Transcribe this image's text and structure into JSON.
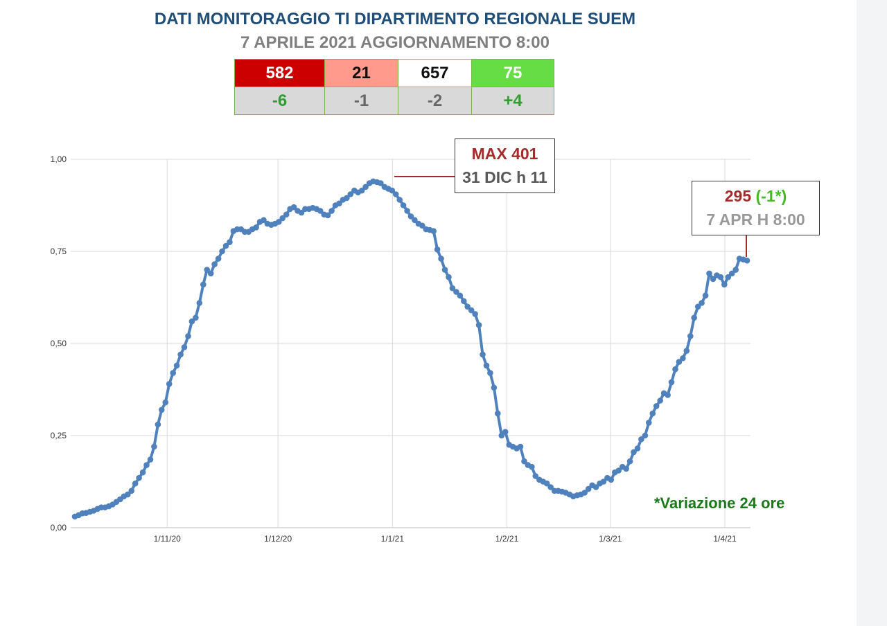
{
  "header": {
    "title": "DATI MONITORAGGIO TI DIPARTIMENTO REGIONALE SUEM",
    "subtitle": "7 APRILE 2021 AGGIORNAMENTO 8:00"
  },
  "summary_table": {
    "values": [
      {
        "value": "582",
        "bg": "#cc0000",
        "color": "#ffffff"
      },
      {
        "value": "21",
        "bg": "#ff9a8c",
        "color": "#111111"
      },
      {
        "value": "657",
        "bg": "#ffffff",
        "color": "#111111"
      },
      {
        "value": "75",
        "bg": "#66dd44",
        "color": "#ffffff"
      }
    ],
    "deltas": [
      {
        "value": "-6",
        "color": "#2e9e2e"
      },
      {
        "value": "-1",
        "color": "#666666"
      },
      {
        "value": "-2",
        "color": "#666666"
      },
      {
        "value": "+4",
        "color": "#2e9e2e"
      }
    ],
    "delta_bg": "#d9d9d9",
    "border_color": "#7ab648"
  },
  "annotations": {
    "max_label": "MAX 401",
    "max_date": "31 DIC h 11",
    "current_value": "295",
    "current_change": "(-1*)",
    "current_date": "7 APR H 8:00",
    "footnote": "*Variazione 24 ore"
  },
  "colors": {
    "line": "#4f81bd",
    "title": "#1f4e79",
    "subtitle": "#7f7f7f",
    "max_red": "#a52a2a",
    "green": "#2e9e2e",
    "grid": "#d9d9d9"
  },
  "chart_data": {
    "type": "line",
    "title": "",
    "xlabel": "",
    "ylabel": "",
    "ylim": [
      0,
      1
    ],
    "yticks": [
      "0,00",
      "0,25",
      "0,50",
      "0,75",
      "1,00"
    ],
    "xticks": [
      "1/11/20",
      "1/12/20",
      "1/1/21",
      "1/2/21",
      "1/3/21",
      "1/4/21"
    ],
    "grid": true,
    "x_start": "2020-10-07",
    "x_end": "2021-04-07",
    "series": [
      {
        "values": [
          0.03,
          0.034,
          0.039,
          0.04,
          0.043,
          0.046,
          0.051,
          0.055,
          0.055,
          0.058,
          0.063,
          0.07,
          0.077,
          0.085,
          0.09,
          0.1,
          0.12,
          0.135,
          0.15,
          0.17,
          0.185,
          0.22,
          0.28,
          0.32,
          0.34,
          0.39,
          0.42,
          0.44,
          0.47,
          0.49,
          0.52,
          0.56,
          0.57,
          0.61,
          0.66,
          0.7,
          0.69,
          0.715,
          0.73,
          0.75,
          0.765,
          0.775,
          0.805,
          0.81,
          0.81,
          0.803,
          0.803,
          0.81,
          0.815,
          0.83,
          0.835,
          0.825,
          0.822,
          0.825,
          0.83,
          0.84,
          0.85,
          0.865,
          0.87,
          0.86,
          0.855,
          0.865,
          0.865,
          0.868,
          0.865,
          0.86,
          0.85,
          0.848,
          0.86,
          0.875,
          0.88,
          0.89,
          0.895,
          0.905,
          0.915,
          0.91,
          0.915,
          0.925,
          0.935,
          0.94,
          0.938,
          0.935,
          0.925,
          0.92,
          0.915,
          0.905,
          0.89,
          0.875,
          0.86,
          0.845,
          0.835,
          0.825,
          0.82,
          0.81,
          0.808,
          0.805,
          0.755,
          0.73,
          0.7,
          0.68,
          0.65,
          0.64,
          0.63,
          0.615,
          0.6,
          0.59,
          0.58,
          0.55,
          0.47,
          0.44,
          0.42,
          0.38,
          0.31,
          0.25,
          0.26,
          0.225,
          0.22,
          0.215,
          0.22,
          0.18,
          0.17,
          0.165,
          0.14,
          0.13,
          0.125,
          0.12,
          0.11,
          0.1,
          0.1,
          0.098,
          0.095,
          0.09,
          0.085,
          0.088,
          0.09,
          0.095,
          0.105,
          0.115,
          0.11,
          0.12,
          0.125,
          0.135,
          0.13,
          0.15,
          0.155,
          0.165,
          0.16,
          0.18,
          0.205,
          0.215,
          0.24,
          0.25,
          0.285,
          0.31,
          0.33,
          0.345,
          0.365,
          0.36,
          0.395,
          0.43,
          0.45,
          0.46,
          0.48,
          0.52,
          0.57,
          0.6,
          0.61,
          0.63,
          0.69,
          0.675,
          0.685,
          0.68,
          0.66,
          0.68,
          0.69,
          0.7,
          0.73,
          0.728,
          0.725
        ]
      }
    ]
  }
}
